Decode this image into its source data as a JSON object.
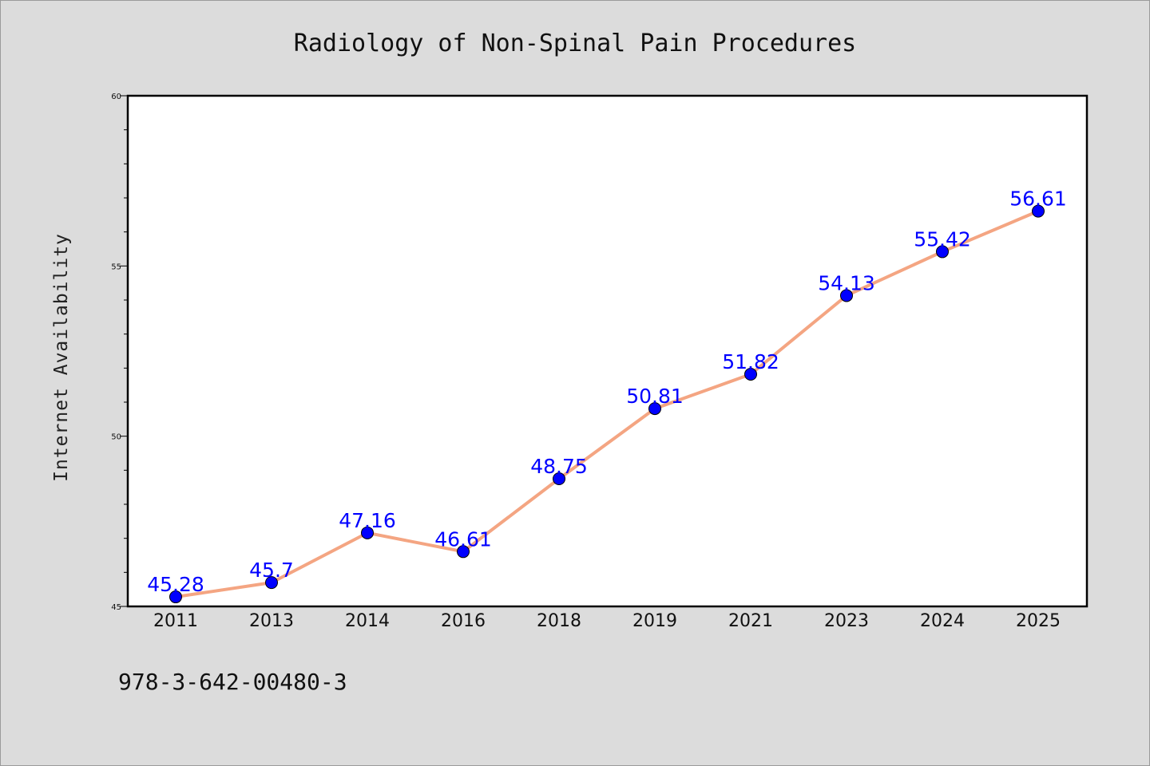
{
  "chart_data": {
    "type": "line",
    "title": "Radiology of Non-Spinal Pain Procedures",
    "xlabel": "",
    "ylabel": "Internet Availability",
    "categories": [
      "2011",
      "2013",
      "2014",
      "2016",
      "2018",
      "2019",
      "2021",
      "2023",
      "2024",
      "2025"
    ],
    "series": [
      {
        "values": [
          45.28,
          45.7,
          47.16,
          46.61,
          48.75,
          50.81,
          51.82,
          54.13,
          55.42,
          56.61
        ],
        "labels": [
          "45.28",
          "45.7",
          "47.16",
          "46.61",
          "48.75",
          "50.81",
          "51.82",
          "54.13",
          "55.42",
          "56.61"
        ],
        "line_color": "#f4a582",
        "marker_color": "#0000ff"
      }
    ],
    "ylim": [
      45,
      60
    ],
    "yticks": [
      "45",
      "50",
      "55",
      "60"
    ],
    "grid": false,
    "legend": "none"
  },
  "footer": {
    "text": "978-3-642-00480-3"
  },
  "colors": {
    "background": "#dcdcdc",
    "plot_background": "#ffffff",
    "label_color": "#0000ff"
  }
}
